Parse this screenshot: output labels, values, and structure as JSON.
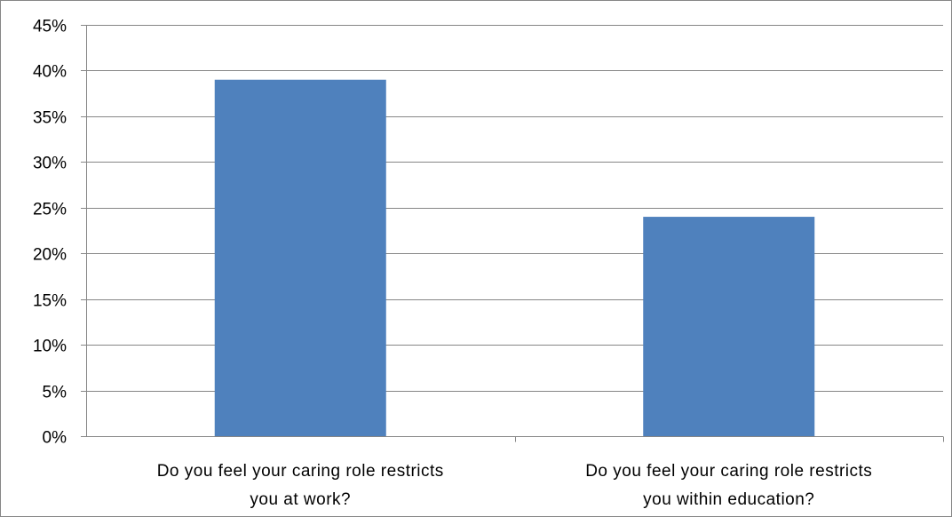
{
  "chart_data": {
    "type": "bar",
    "title": "",
    "xlabel": "",
    "ylabel": "",
    "categories": [
      [
        "Do you feel your caring role restricts",
        "you at work?"
      ],
      [
        "Do you feel your caring role restricts",
        "you within education?"
      ]
    ],
    "values": [
      0.39,
      0.24
    ],
    "ylim": [
      0,
      0.45
    ],
    "y_ticks": [
      {
        "value": 0,
        "label": "0%"
      },
      {
        "value": 0.05,
        "label": "5%"
      },
      {
        "value": 0.1,
        "label": "10%"
      },
      {
        "value": 0.15,
        "label": "15%"
      },
      {
        "value": 0.2,
        "label": "20%"
      },
      {
        "value": 0.25,
        "label": "25%"
      },
      {
        "value": 0.3,
        "label": "30%"
      },
      {
        "value": 0.35,
        "label": "35%"
      },
      {
        "value": 0.4,
        "label": "40%"
      },
      {
        "value": 0.45,
        "label": "45%"
      }
    ],
    "grid": true,
    "legend": "none",
    "colors": {
      "bar": "#4F81BD",
      "grid": "#868686",
      "axis": "#868686"
    }
  }
}
